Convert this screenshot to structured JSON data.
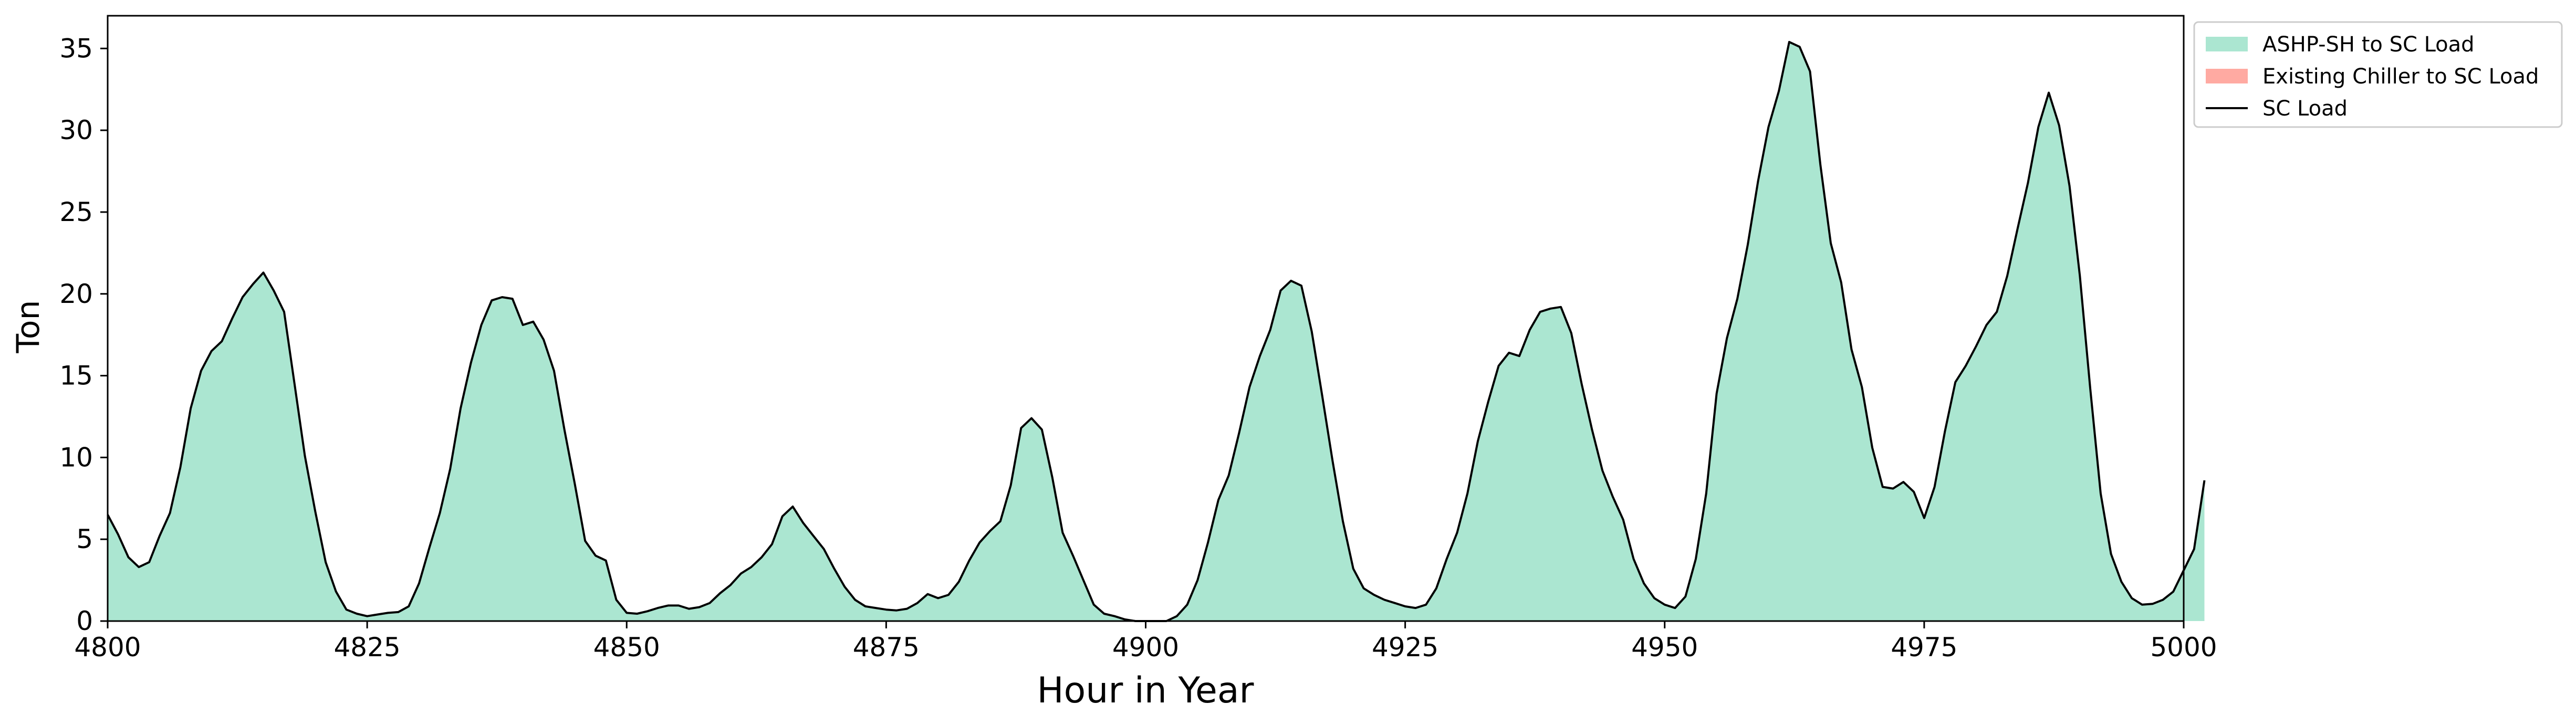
{
  "chart_data": {
    "type": "area",
    "title": "",
    "xlabel": "Hour in Year",
    "ylabel": "Ton",
    "xlim": [
      4800,
      5000
    ],
    "ylim": [
      0,
      37
    ],
    "x_ticks": [
      4800,
      4825,
      4850,
      4875,
      4900,
      4925,
      4950,
      4975,
      5000
    ],
    "y_ticks": [
      0,
      5,
      10,
      15,
      20,
      25,
      30,
      35
    ],
    "grid": false,
    "legend_position": "outside-top-right",
    "colors": {
      "ashp": "#abe6d1",
      "chiller": "#ffaaa2",
      "load_line": "#000000"
    },
    "legend": [
      {
        "label": "ASHP-SH to SC Load",
        "kind": "patch",
        "color": "#abe6d1"
      },
      {
        "label": "Existing Chiller to SC Load",
        "kind": "patch",
        "color": "#ffaaa2"
      },
      {
        "label": "SC Load",
        "kind": "line",
        "color": "#000000"
      }
    ],
    "x_start": 4800,
    "series": [
      {
        "name": "ASHP-SH to SC Load",
        "kind": "area",
        "values": [
          6.5,
          5.3,
          3.9,
          3.3,
          3.6,
          5.2,
          6.6,
          9.4,
          13.0,
          15.3,
          16.5,
          17.1,
          18.5,
          19.8,
          20.6,
          21.3,
          20.2,
          18.9,
          14.5,
          10.1,
          6.7,
          3.6,
          1.8,
          0.7,
          0.45,
          0.3,
          0.4,
          0.5,
          0.55,
          0.9,
          2.3,
          4.5,
          6.6,
          9.3,
          13.0,
          15.8,
          18.1,
          19.6,
          19.8,
          19.7,
          18.1,
          18.3,
          17.2,
          15.3,
          11.7,
          8.4,
          4.9,
          4.0,
          3.7,
          1.3,
          0.5,
          0.45,
          0.6,
          0.8,
          0.95,
          0.95,
          0.75,
          0.85,
          1.1,
          1.7,
          2.2,
          2.9,
          3.3,
          3.9,
          4.7,
          6.4,
          7.0,
          6.0,
          5.2,
          4.4,
          3.2,
          2.1,
          1.3,
          0.9,
          0.8,
          0.7,
          0.65,
          0.75,
          1.1,
          1.65,
          1.4,
          1.6,
          2.4,
          3.7,
          4.8,
          5.5,
          6.1,
          8.3,
          11.8,
          12.4,
          11.7,
          8.8,
          5.4,
          4.0,
          2.5,
          1.0,
          0.45,
          0.3,
          0.1,
          0.0,
          0.0,
          0.0,
          0.0,
          0.3,
          1.0,
          2.5,
          4.8,
          7.4,
          8.9,
          11.5,
          14.3,
          16.2,
          17.8,
          20.2,
          20.8,
          20.5,
          17.7,
          13.8,
          9.8,
          6.1,
          3.2,
          2.0,
          1.6,
          1.3,
          1.1,
          0.9,
          0.8,
          1.0,
          2.0,
          3.8,
          5.4,
          7.8,
          11.0,
          13.4,
          15.6,
          16.4,
          16.2,
          17.8,
          18.9,
          19.1,
          19.2,
          17.6,
          14.5,
          11.7,
          9.2,
          7.6,
          6.2,
          3.8,
          2.3,
          1.4,
          1.0,
          0.8,
          1.5,
          3.8,
          7.8,
          13.9,
          17.3,
          19.7,
          23.0,
          26.9,
          30.2,
          32.4,
          35.4,
          35.1,
          33.6,
          27.9,
          23.1,
          20.7,
          16.6,
          14.3,
          10.6,
          8.2,
          8.1,
          8.5,
          7.9,
          6.3,
          8.2,
          11.6,
          14.6,
          15.6,
          16.8,
          18.1,
          18.9,
          21.1,
          24.0,
          26.8,
          30.2,
          32.3,
          30.3,
          26.6,
          21.1,
          14.2,
          7.8,
          4.1,
          2.4,
          1.4,
          1.0,
          1.05,
          1.3,
          1.8,
          3.1,
          4.4,
          8.6
        ]
      },
      {
        "name": "Existing Chiller to SC Load",
        "kind": "area",
        "values": []
      },
      {
        "name": "SC Load",
        "kind": "line",
        "same_as": "ASHP-SH to SC Load"
      }
    ]
  }
}
